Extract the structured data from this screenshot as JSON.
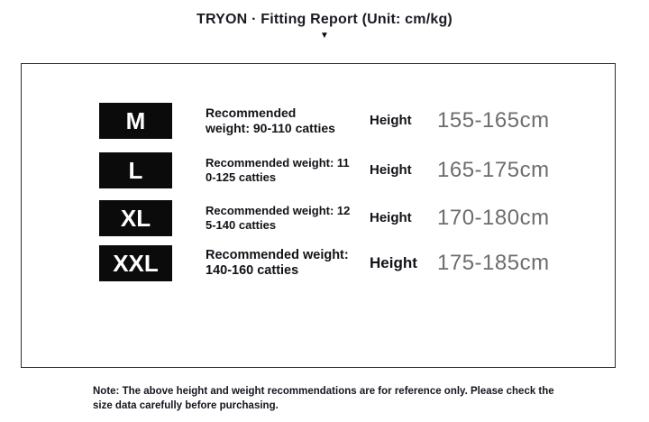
{
  "header": {
    "title": "TRYON · Fitting Report (Unit: cm/kg)",
    "arrow": "▼"
  },
  "table": {
    "rows": [
      {
        "size": "M",
        "weight_line1": "Recommended",
        "weight_line2": "weight: 90-110 catties",
        "height_label": "Height",
        "height_range": "155-165cm"
      },
      {
        "size": "L",
        "weight_line1": "Recommended weight: 11",
        "weight_line2": "0-125 catties",
        "height_label": "Height",
        "height_range": "165-175cm"
      },
      {
        "size": "XL",
        "weight_line1": "Recommended weight: 12",
        "weight_line2": "5-140 catties",
        "height_label": "Height",
        "height_range": "170-180cm"
      },
      {
        "size": "XXL",
        "weight_line1": "Recommended weight:",
        "weight_line2": "140-160 catties",
        "height_label": "Height",
        "height_range": "175-185cm"
      }
    ]
  },
  "note": {
    "line1": "Note: The above height and weight recommendations are for reference only. Please check the",
    "line2": "size data carefully before purchasing."
  },
  "colors": {
    "badge_bg": "#0b0b0b",
    "text_dark": "#15151e",
    "range_gray": "#6d6d6d",
    "panel_border": "#2b2b2b"
  }
}
